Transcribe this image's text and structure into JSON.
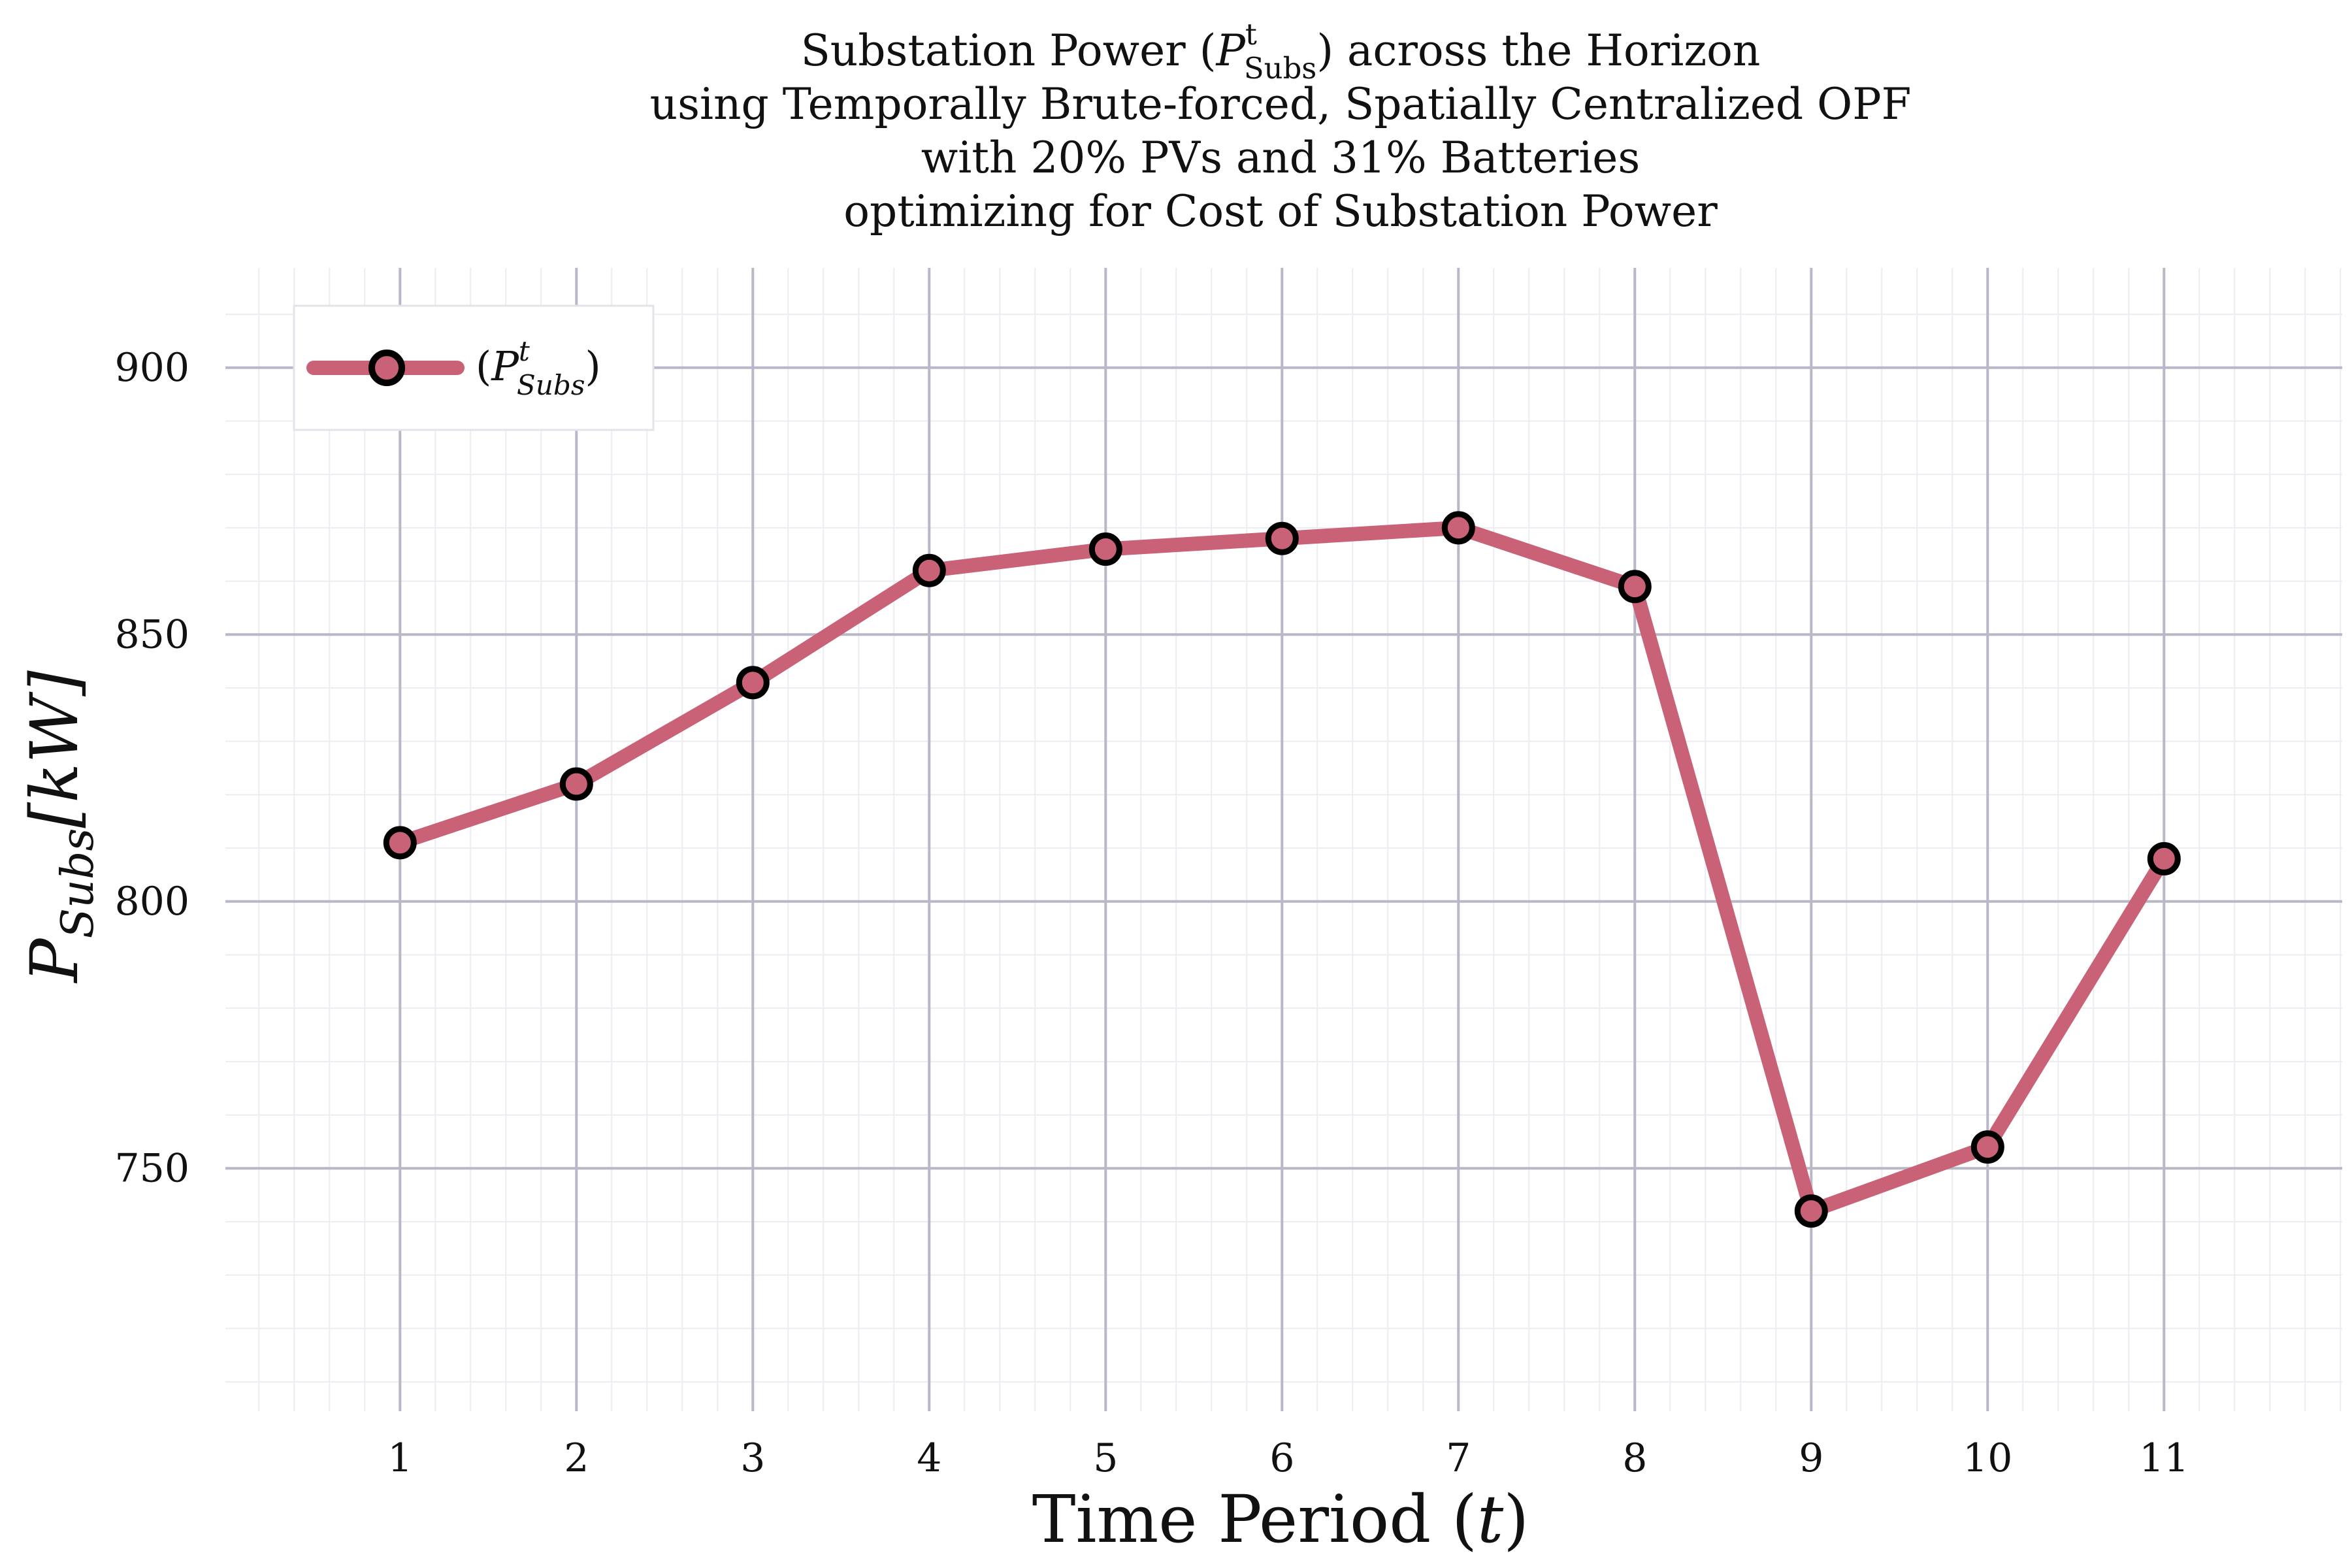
{
  "chart_data": {
    "type": "line",
    "title_lines": [
      {
        "before": "Substation Power (",
        "sym": "P",
        "sup": "t",
        "sub": "Subs",
        "after": ") across the Horizon"
      },
      {
        "text": "using Temporally Brute-forced, Spatially Centralized OPF"
      },
      {
        "text": "with 20% PVs and 31% Batteries"
      },
      {
        "text": "optimizing for Cost of Substation Power"
      }
    ],
    "xlabel": {
      "text": "Time Period (",
      "var": "t",
      "close": ")"
    },
    "ylabel": {
      "sym": "P",
      "sub": "Subs",
      "unit": "[kW]"
    },
    "x": [
      1,
      2,
      3,
      4,
      5,
      6,
      7,
      8,
      9,
      10,
      11
    ],
    "x_ticks": [
      "1",
      "2",
      "3",
      "4",
      "5",
      "6",
      "7",
      "8",
      "9",
      "10",
      "11"
    ],
    "xlim": [
      0.01,
      12.01
    ],
    "y_ticks": [
      750,
      800,
      850,
      900
    ],
    "ylim": [
      704.5,
      918.7
    ],
    "grid": true,
    "legend_position": "top-left",
    "series": [
      {
        "name": "(P^t_Subs)",
        "legend": {
          "before": "(",
          "sym": "P",
          "sup": "t",
          "sub": "Subs",
          "after": ")"
        },
        "values": [
          811,
          822,
          841,
          862,
          866,
          868,
          870,
          859,
          742,
          754,
          808
        ],
        "color": "#c96277",
        "marker_edge": "#000000"
      }
    ],
    "colors": {
      "major_grid": "#b8b8c9",
      "minor_grid": "#ececf2"
    }
  }
}
